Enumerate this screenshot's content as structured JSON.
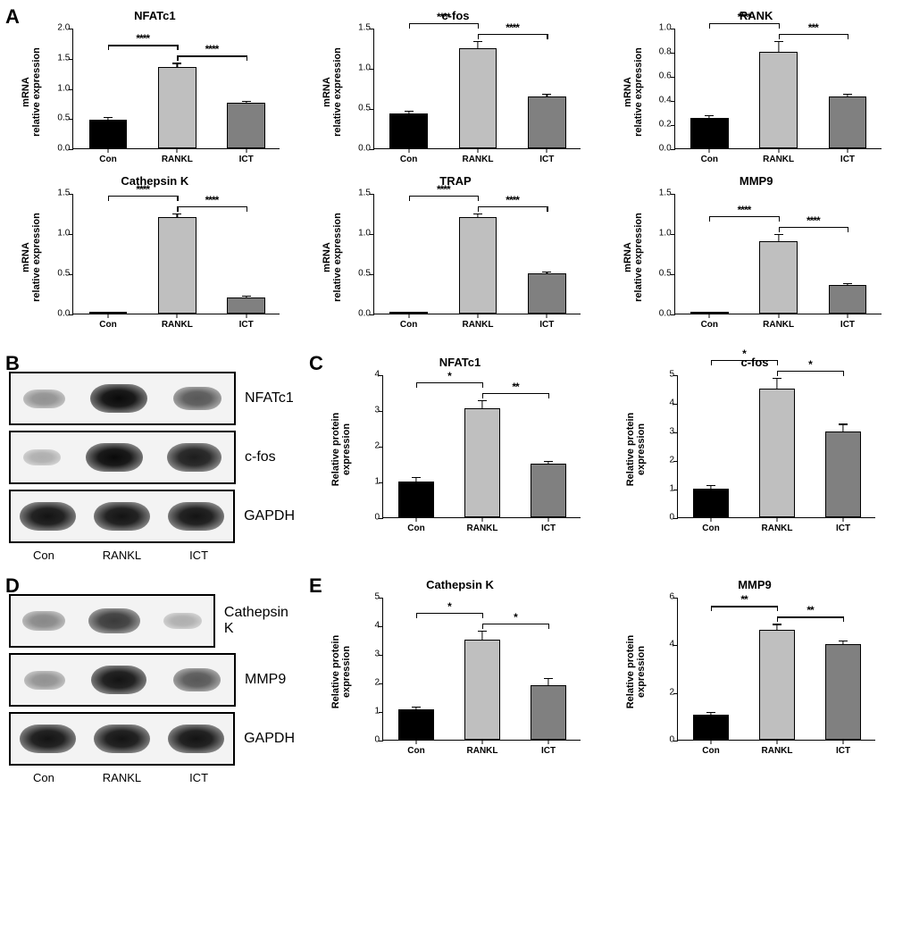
{
  "figure": {
    "background_color": "#ffffff",
    "font_family": "Arial",
    "panel_label_fontsize": 22,
    "chart_title_fontsize": 13,
    "axis_label_fontsize": 11,
    "tick_fontsize": 10,
    "bar_colors": {
      "Con": "#000000",
      "RANKL": "#bfbfbf",
      "ICT": "#808080"
    },
    "bar_border_color": "#000000",
    "categories": [
      "Con",
      "RANKL",
      "ICT"
    ]
  },
  "panels": {
    "A": {
      "label": "A",
      "ylabel": "mRNA\nrelative expression",
      "charts": [
        {
          "title": "NFATc1",
          "ymax": 2.0,
          "ystep": 0.5,
          "values": [
            0.48,
            1.35,
            0.75
          ],
          "errs": [
            0.05,
            0.08,
            0.05
          ],
          "sig": [
            "****",
            "****"
          ]
        },
        {
          "title": "c-fos",
          "ymax": 1.5,
          "ystep": 0.5,
          "values": [
            0.43,
            1.25,
            0.64
          ],
          "errs": [
            0.05,
            0.1,
            0.05
          ],
          "sig": [
            "****",
            "****"
          ]
        },
        {
          "title": "RANK",
          "ymax": 1.0,
          "ystep": 0.2,
          "values": [
            0.25,
            0.8,
            0.43
          ],
          "errs": [
            0.03,
            0.1,
            0.03
          ],
          "sig": [
            "****",
            "***"
          ]
        },
        {
          "title": "Cathepsin K",
          "ymax": 1.5,
          "ystep": 0.5,
          "values": [
            0.01,
            1.2,
            0.2
          ],
          "errs": [
            0.01,
            0.06,
            0.03
          ],
          "sig": [
            "****",
            "****"
          ]
        },
        {
          "title": "TRAP",
          "ymax": 1.5,
          "ystep": 0.5,
          "values": [
            0.01,
            1.2,
            0.5
          ],
          "errs": [
            0.01,
            0.06,
            0.03
          ],
          "sig": [
            "****",
            "****"
          ]
        },
        {
          "title": "MMP9",
          "ymax": 1.5,
          "ystep": 0.5,
          "values": [
            0.01,
            0.9,
            0.36
          ],
          "errs": [
            0.01,
            0.1,
            0.03
          ],
          "sig": [
            "****",
            "****"
          ]
        }
      ]
    },
    "B": {
      "label": "B",
      "lane_labels": [
        "Con",
        "RANKL",
        "ICT"
      ],
      "blots": [
        {
          "name": "NFATc1",
          "intensities": [
            0.25,
            0.95,
            0.55
          ]
        },
        {
          "name": "c-fos",
          "intensities": [
            0.1,
            0.95,
            0.85
          ]
        },
        {
          "name": "GAPDH",
          "intensities": [
            0.9,
            0.9,
            0.9
          ]
        }
      ]
    },
    "C": {
      "label": "C",
      "ylabel": "Relative protein expression",
      "charts": [
        {
          "title": "NFATc1",
          "ymax": 4,
          "ystep": 1,
          "values": [
            1.0,
            3.05,
            1.5
          ],
          "errs": [
            0.15,
            0.25,
            0.1
          ],
          "sig": [
            "*",
            "**"
          ]
        },
        {
          "title": "c-fos",
          "ymax": 5,
          "ystep": 1,
          "values": [
            1.0,
            4.5,
            3.0
          ],
          "errs": [
            0.15,
            0.4,
            0.3
          ],
          "sig": [
            "*",
            "*"
          ]
        }
      ]
    },
    "D": {
      "label": "D",
      "lane_labels": [
        "Con",
        "RANKL",
        "ICT"
      ],
      "blots": [
        {
          "name": "Cathepsin K",
          "intensities": [
            0.3,
            0.7,
            0.1
          ]
        },
        {
          "name": "MMP9",
          "intensities": [
            0.25,
            0.9,
            0.55
          ]
        },
        {
          "name": "GAPDH",
          "intensities": [
            0.9,
            0.9,
            0.9
          ]
        }
      ]
    },
    "E": {
      "label": "E",
      "ylabel": "Relative protein expression",
      "charts": [
        {
          "title": "Cathepsin K",
          "ymax": 5,
          "ystep": 1,
          "values": [
            1.05,
            3.5,
            1.9
          ],
          "errs": [
            0.15,
            0.35,
            0.3
          ],
          "sig": [
            "*",
            "*"
          ]
        },
        {
          "title": "MMP9",
          "ymax": 6,
          "ystep": 2,
          "values": [
            1.05,
            4.6,
            4.0
          ],
          "errs": [
            0.15,
            0.3,
            0.2
          ],
          "sig": [
            "**",
            "**"
          ]
        }
      ]
    }
  }
}
